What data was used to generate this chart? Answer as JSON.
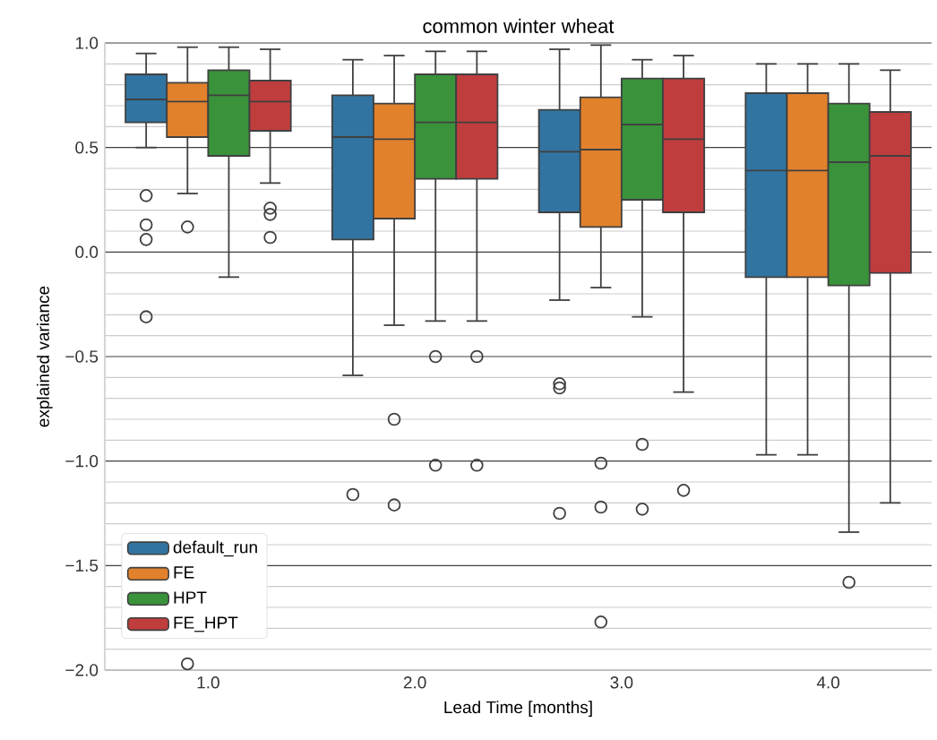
{
  "chart_data": {
    "type": "box",
    "title": "common winter wheat",
    "xlabel": "Lead Time [months]",
    "ylabel": "explained variance",
    "categories": [
      "1.0",
      "2.0",
      "3.0",
      "4.0"
    ],
    "ylim": [
      -2,
      1
    ],
    "yticks": [
      {
        "value": -2,
        "label": "−2.0"
      },
      {
        "value": -1.5,
        "label": "−1.5"
      },
      {
        "value": -1,
        "label": "−1.0"
      },
      {
        "value": -0.5,
        "label": "−0.5"
      },
      {
        "value": 0,
        "label": "0.0"
      },
      {
        "value": 0.5,
        "label": "0.5"
      },
      {
        "value": 1,
        "label": "1.0"
      }
    ],
    "grid": "y",
    "legend": "bottom left",
    "series": [
      {
        "name": "default_run",
        "color": "#3274a1",
        "boxes": [
          {
            "low": 0.5,
            "q1": 0.62,
            "median": 0.73,
            "q3": 0.85,
            "high": 0.95,
            "outliers": [
              0.27,
              0.13,
              0.06,
              -0.31
            ]
          },
          {
            "low": -0.59,
            "q1": 0.06,
            "median": 0.55,
            "q3": 0.75,
            "high": 0.92,
            "outliers": [
              -1.16
            ]
          },
          {
            "low": -0.23,
            "q1": 0.19,
            "median": 0.48,
            "q3": 0.68,
            "high": 0.97,
            "outliers": [
              -0.63,
              -0.65,
              -1.25
            ]
          },
          {
            "low": -0.97,
            "q1": -0.12,
            "median": 0.39,
            "q3": 0.76,
            "high": 0.9
          }
        ]
      },
      {
        "name": "FE",
        "color": "#e1812c",
        "boxes": [
          {
            "low": 0.28,
            "q1": 0.55,
            "median": 0.72,
            "q3": 0.81,
            "high": 0.98,
            "outliers": [
              0.12,
              -1.97
            ]
          },
          {
            "low": -0.35,
            "q1": 0.16,
            "median": 0.54,
            "q3": 0.71,
            "high": 0.94,
            "outliers": [
              -0.8,
              -1.21
            ]
          },
          {
            "low": -0.17,
            "q1": 0.12,
            "median": 0.49,
            "q3": 0.74,
            "high": 0.99,
            "outliers": [
              -1.01,
              -1.22,
              -1.77
            ]
          },
          {
            "low": -0.97,
            "q1": -0.12,
            "median": 0.39,
            "q3": 0.76,
            "high": 0.9
          }
        ]
      },
      {
        "name": "HPT",
        "color": "#3a923a",
        "boxes": [
          {
            "low": -0.12,
            "q1": 0.46,
            "median": 0.75,
            "q3": 0.87,
            "high": 0.98
          },
          {
            "low": -0.33,
            "q1": 0.35,
            "median": 0.62,
            "q3": 0.85,
            "high": 0.96,
            "outliers": [
              -0.5,
              -1.02
            ]
          },
          {
            "low": -0.31,
            "q1": 0.25,
            "median": 0.61,
            "q3": 0.83,
            "high": 0.92,
            "outliers": [
              -0.92,
              -1.23
            ]
          },
          {
            "low": -1.34,
            "q1": -0.16,
            "median": 0.43,
            "q3": 0.71,
            "high": 0.9,
            "outliers": [
              -1.58
            ]
          }
        ]
      },
      {
        "name": "FE_HPT",
        "color": "#c03d3e",
        "boxes": [
          {
            "low": 0.33,
            "q1": 0.58,
            "median": 0.72,
            "q3": 0.82,
            "high": 0.97,
            "outliers": [
              0.21,
              0.18,
              0.07
            ]
          },
          {
            "low": -0.33,
            "q1": 0.35,
            "median": 0.62,
            "q3": 0.85,
            "high": 0.96,
            "outliers": [
              -0.5,
              -1.02
            ]
          },
          {
            "low": -0.67,
            "q1": 0.19,
            "median": 0.54,
            "q3": 0.83,
            "high": 0.94,
            "outliers": [
              -1.14
            ]
          },
          {
            "low": -1.2,
            "q1": -0.1,
            "median": 0.46,
            "q3": 0.67,
            "high": 0.87
          }
        ]
      }
    ]
  }
}
